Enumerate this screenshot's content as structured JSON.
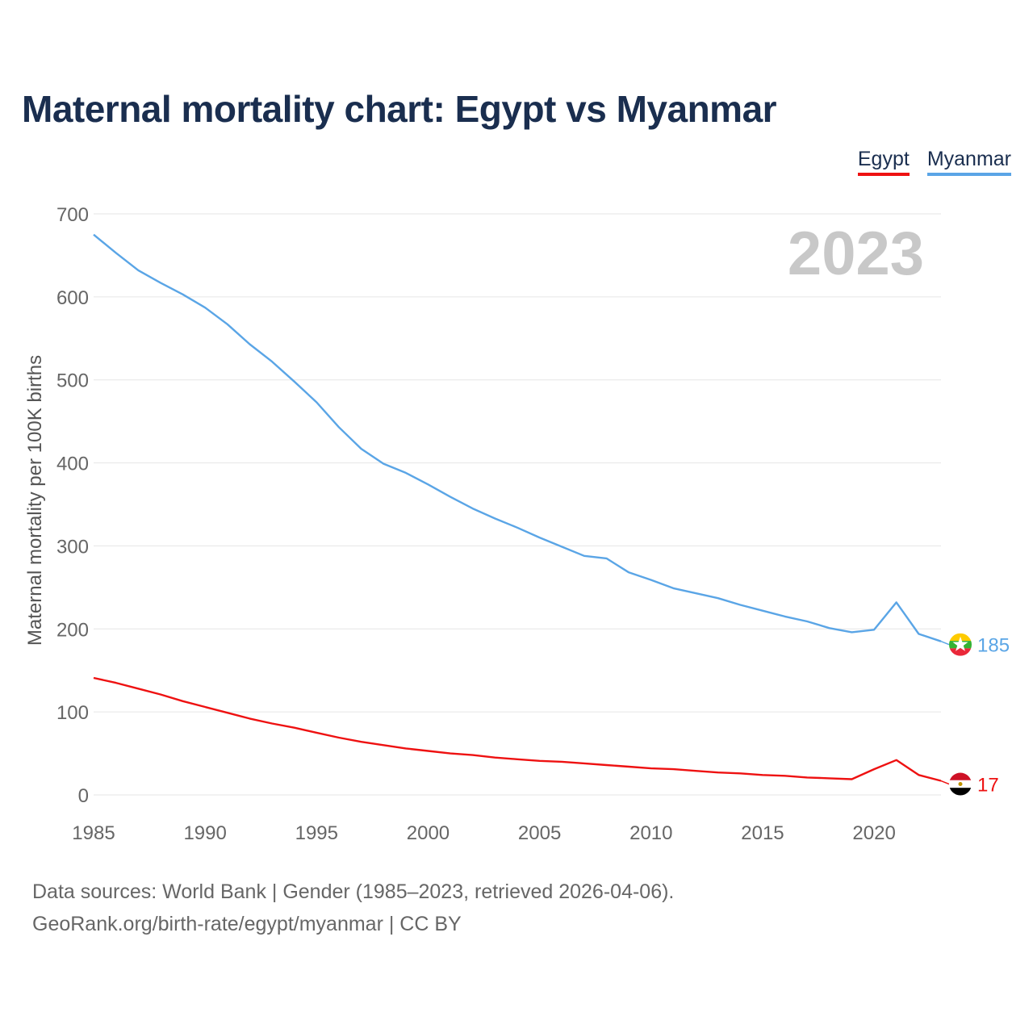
{
  "title": "Maternal mortality chart: Egypt vs Myanmar",
  "legend": [
    {
      "name": "Egypt",
      "color": "#ee1111"
    },
    {
      "name": "Myanmar",
      "color": "#5aa5e6"
    }
  ],
  "year_label": "2023",
  "sources": {
    "line1": "Data sources: World Bank | Gender (1985–2023, retrieved 2026-04-06).",
    "line2": "GeoRank.org/birth-rate/egypt/myanmar | CC BY"
  },
  "chart_data": {
    "type": "line",
    "title": "Maternal mortality chart: Egypt vs Myanmar",
    "xlabel": "",
    "ylabel": "Maternal mortality per 100K births",
    "xlim": [
      1985,
      2023
    ],
    "ylim": [
      0,
      700
    ],
    "xticks": [
      1985,
      1990,
      1995,
      2000,
      2005,
      2010,
      2015,
      2020
    ],
    "yticks": [
      0,
      100,
      200,
      300,
      400,
      500,
      600,
      700
    ],
    "grid": true,
    "x": [
      1985,
      1986,
      1987,
      1988,
      1989,
      1990,
      1991,
      1992,
      1993,
      1994,
      1995,
      1996,
      1997,
      1998,
      1999,
      2000,
      2001,
      2002,
      2003,
      2004,
      2005,
      2006,
      2007,
      2008,
      2009,
      2010,
      2011,
      2012,
      2013,
      2014,
      2015,
      2016,
      2017,
      2018,
      2019,
      2020,
      2021,
      2022,
      2023
    ],
    "series": [
      {
        "name": "Myanmar",
        "color": "#5aa5e6",
        "end_label": "185",
        "flag": "myanmar",
        "values": [
          675,
          653,
          632,
          617,
          603,
          587,
          567,
          543,
          522,
          498,
          473,
          443,
          417,
          399,
          388,
          374,
          359,
          345,
          333,
          322,
          310,
          299,
          288,
          285,
          268,
          259,
          249,
          243,
          237,
          229,
          222,
          215,
          209,
          201,
          196,
          199,
          232,
          194,
          185
        ]
      },
      {
        "name": "Egypt",
        "color": "#ee1111",
        "end_label": "17",
        "flag": "egypt",
        "values": [
          141,
          135,
          128,
          121,
          113,
          106,
          99,
          92,
          86,
          81,
          75,
          69,
          64,
          60,
          56,
          53,
          50,
          48,
          45,
          43,
          41,
          40,
          38,
          36,
          34,
          32,
          31,
          29,
          27,
          26,
          24,
          23,
          21,
          20,
          19,
          31,
          42,
          24,
          17
        ]
      }
    ]
  }
}
